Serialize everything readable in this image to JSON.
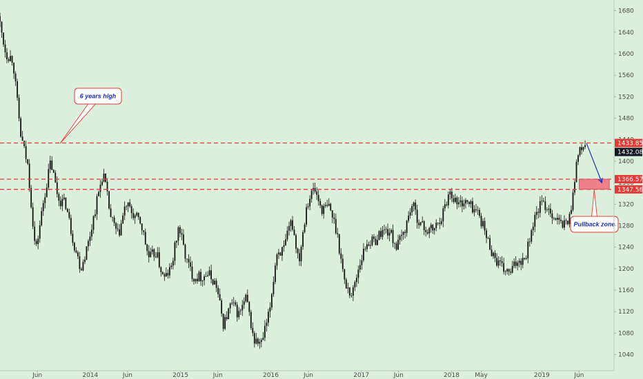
{
  "chart_data": {
    "type": "candlestick",
    "title": "",
    "xlabel": "",
    "ylabel": "",
    "ylim": [
      1010,
      1700
    ],
    "y_ticks": [
      1040,
      1080,
      1120,
      1160,
      1200,
      1240,
      1280,
      1320,
      1360,
      1400,
      1440,
      1480,
      1520,
      1560,
      1600,
      1640,
      1680
    ],
    "x_ticks": [
      "Jun",
      "2014",
      "Jun",
      "2015",
      "Jun",
      "2016",
      "Jun",
      "2017",
      "Jun",
      "2018",
      "May",
      "2019",
      "Jun"
    ],
    "x_tick_dates": [
      "2013-06",
      "2014-01",
      "2014-06",
      "2015-01",
      "2015-06",
      "2016-01",
      "2016-06",
      "2017-01",
      "2017-06",
      "2018-01",
      "2018-05",
      "2019-01",
      "2019-06"
    ],
    "price_path": [
      {
        "date": "2013-01",
        "price": 1670
      },
      {
        "date": "2013-02",
        "price": 1600
      },
      {
        "date": "2013-03",
        "price": 1590
      },
      {
        "date": "2013-04",
        "price": 1450
      },
      {
        "date": "2013-05",
        "price": 1390
      },
      {
        "date": "2013-06",
        "price": 1230
      },
      {
        "date": "2013-07",
        "price": 1320
      },
      {
        "date": "2013-08",
        "price": 1400
      },
      {
        "date": "2013-09",
        "price": 1330
      },
      {
        "date": "2013-10",
        "price": 1320
      },
      {
        "date": "2013-11",
        "price": 1250
      },
      {
        "date": "2013-12",
        "price": 1200
      },
      {
        "date": "2014-01",
        "price": 1250
      },
      {
        "date": "2014-02",
        "price": 1320
      },
      {
        "date": "2014-03",
        "price": 1380
      },
      {
        "date": "2014-04",
        "price": 1295
      },
      {
        "date": "2014-05",
        "price": 1260
      },
      {
        "date": "2014-06",
        "price": 1320
      },
      {
        "date": "2014-07",
        "price": 1300
      },
      {
        "date": "2014-08",
        "price": 1285
      },
      {
        "date": "2014-09",
        "price": 1220
      },
      {
        "date": "2014-10",
        "price": 1230
      },
      {
        "date": "2014-11",
        "price": 1180
      },
      {
        "date": "2014-12",
        "price": 1200
      },
      {
        "date": "2015-01",
        "price": 1280
      },
      {
        "date": "2015-02",
        "price": 1215
      },
      {
        "date": "2015-03",
        "price": 1185
      },
      {
        "date": "2015-04",
        "price": 1185
      },
      {
        "date": "2015-05",
        "price": 1190
      },
      {
        "date": "2015-06",
        "price": 1170
      },
      {
        "date": "2015-07",
        "price": 1095
      },
      {
        "date": "2015-08",
        "price": 1135
      },
      {
        "date": "2015-09",
        "price": 1115
      },
      {
        "date": "2015-10",
        "price": 1145
      },
      {
        "date": "2015-11",
        "price": 1065
      },
      {
        "date": "2015-12",
        "price": 1060
      },
      {
        "date": "2016-01",
        "price": 1115
      },
      {
        "date": "2016-02",
        "price": 1230
      },
      {
        "date": "2016-03",
        "price": 1235
      },
      {
        "date": "2016-04",
        "price": 1290
      },
      {
        "date": "2016-05",
        "price": 1215
      },
      {
        "date": "2016-06",
        "price": 1320
      },
      {
        "date": "2016-07",
        "price": 1350
      },
      {
        "date": "2016-08",
        "price": 1310
      },
      {
        "date": "2016-09",
        "price": 1315
      },
      {
        "date": "2016-10",
        "price": 1270
      },
      {
        "date": "2016-11",
        "price": 1175
      },
      {
        "date": "2016-12",
        "price": 1150
      },
      {
        "date": "2017-01",
        "price": 1210
      },
      {
        "date": "2017-02",
        "price": 1250
      },
      {
        "date": "2017-03",
        "price": 1250
      },
      {
        "date": "2017-04",
        "price": 1270
      },
      {
        "date": "2017-05",
        "price": 1270
      },
      {
        "date": "2017-06",
        "price": 1240
      },
      {
        "date": "2017-07",
        "price": 1270
      },
      {
        "date": "2017-08",
        "price": 1320
      },
      {
        "date": "2017-09",
        "price": 1285
      },
      {
        "date": "2017-10",
        "price": 1270
      },
      {
        "date": "2017-11",
        "price": 1275
      },
      {
        "date": "2017-12",
        "price": 1300
      },
      {
        "date": "2018-01",
        "price": 1345
      },
      {
        "date": "2018-02",
        "price": 1320
      },
      {
        "date": "2018-03",
        "price": 1325
      },
      {
        "date": "2018-04",
        "price": 1315
      },
      {
        "date": "2018-05",
        "price": 1300
      },
      {
        "date": "2018-06",
        "price": 1255
      },
      {
        "date": "2018-07",
        "price": 1220
      },
      {
        "date": "2018-08",
        "price": 1200
      },
      {
        "date": "2018-09",
        "price": 1190
      },
      {
        "date": "2018-10",
        "price": 1215
      },
      {
        "date": "2018-11",
        "price": 1220
      },
      {
        "date": "2018-12",
        "price": 1280
      },
      {
        "date": "2019-01",
        "price": 1320
      },
      {
        "date": "2019-02",
        "price": 1315
      },
      {
        "date": "2019-03",
        "price": 1295
      },
      {
        "date": "2019-04",
        "price": 1280
      },
      {
        "date": "2019-05",
        "price": 1295
      },
      {
        "date": "2019-06",
        "price": 1410
      },
      {
        "date": "2019-07",
        "price": 1432
      }
    ],
    "horizontal_levels": [
      {
        "value": 1433.85,
        "label": "1433.85",
        "color": "#e53935"
      },
      {
        "value": 1366.57,
        "label": "1366.57",
        "color": "#e53935"
      },
      {
        "value": 1347.56,
        "label": "1347.56",
        "color": "#e53935"
      }
    ],
    "last_price": {
      "value": 1432.08,
      "label": "1432.08",
      "color": "#131722"
    },
    "zone": {
      "from_date": "2019-06",
      "to_date": "2019-10",
      "low": 1347.56,
      "high": 1366.57,
      "color": "#f26b7a"
    },
    "forecast_arrow": {
      "from": {
        "date": "2019-07",
        "price": 1433
      },
      "to": {
        "date": "2019-09",
        "price": 1360
      },
      "color": "#1a2fb5"
    },
    "annotations": [
      {
        "text": "6 years high",
        "anchor": {
          "date": "2013-09",
          "price": 1433
        }
      },
      {
        "text": "Pullback zone",
        "anchor": {
          "date": "2019-08",
          "price": 1347
        }
      }
    ],
    "grid": false,
    "colors": {
      "background": "#dcefdc",
      "candle": "#111111",
      "level": "#e53935",
      "annotation_text": "#1a2fb5"
    }
  }
}
